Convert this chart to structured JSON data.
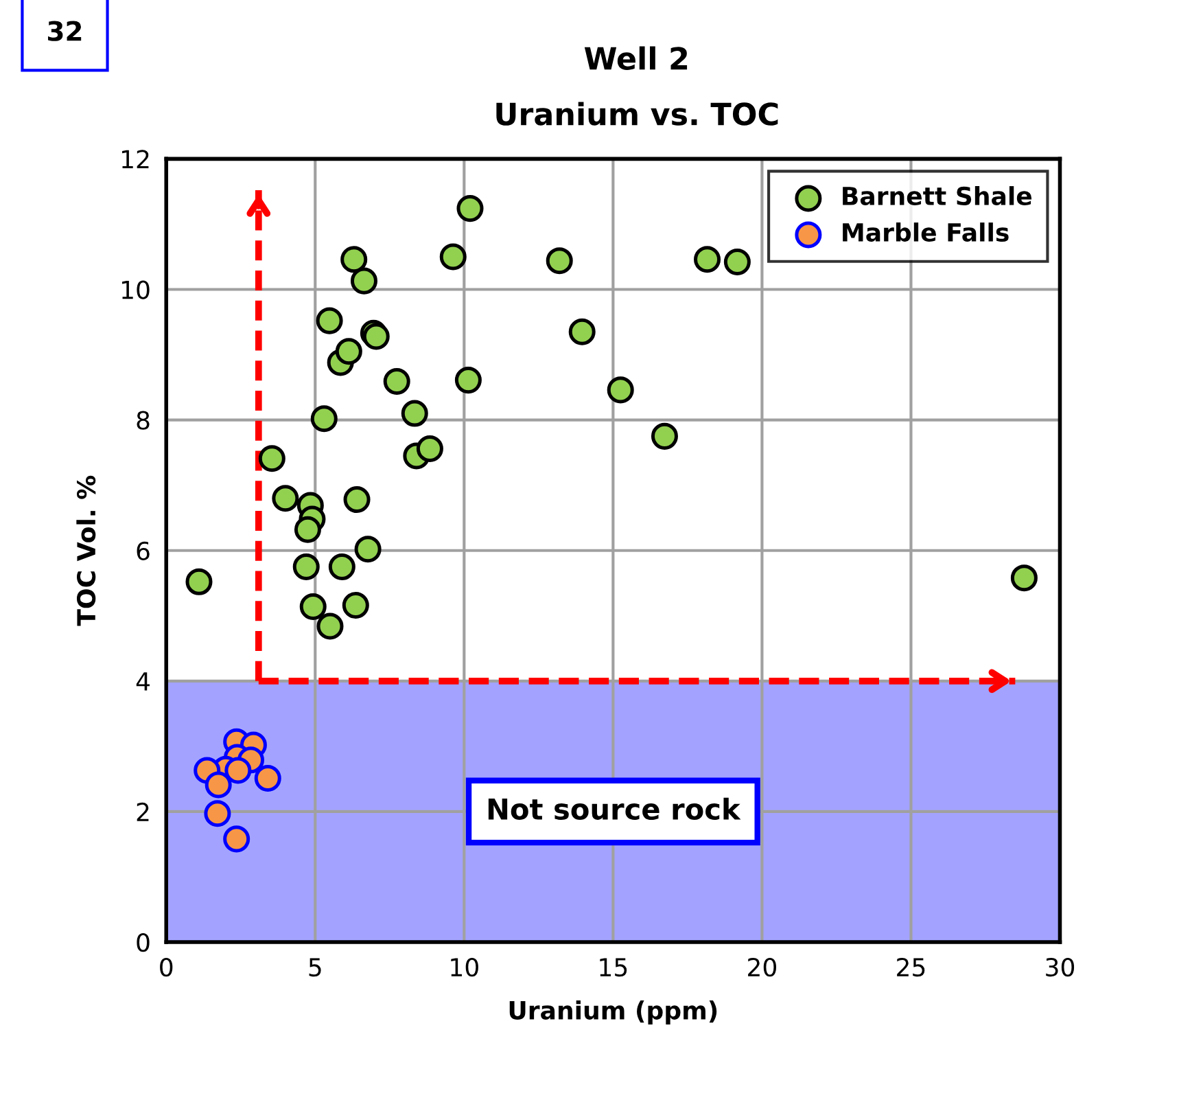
{
  "chart_data": {
    "type": "scatter",
    "title": "Well 2",
    "subtitle": "Uranium vs. TOC",
    "xlabel": "Uranium (ppm)",
    "ylabel": "TOC Vol. %",
    "annotations": [
      "32"
    ],
    "xlim": [
      0,
      30
    ],
    "xticks": [
      0,
      5,
      10,
      15,
      20,
      25,
      30
    ],
    "ylim": [
      0,
      12
    ],
    "yticks": [
      0,
      2,
      4,
      6,
      8,
      10,
      12
    ],
    "grid": true,
    "legend": "top right",
    "marker": "circle",
    "ref_lines": [
      {
        "axis": "x",
        "value": 3.1,
        "color": "#ff0000",
        "line_style": "dashed"
      },
      {
        "axis": "y",
        "value": 4,
        "color": "#ff0000",
        "line_style": "dashed"
      }
    ],
    "bands": [
      {
        "axis": "y",
        "from": 0,
        "to": 4,
        "label": "Not source rock",
        "color": "#9999ff"
      }
    ],
    "series": [
      {
        "name": "Barnett Shale",
        "color": "#92d050",
        "x": [
          1.1,
          3.55,
          4.0,
          4.84,
          4.9,
          4.75,
          4.7,
          4.93,
          5.3,
          5.5,
          5.48,
          5.9,
          5.85,
          6.13,
          6.3,
          6.36,
          6.4,
          6.64,
          6.77,
          6.96,
          7.05,
          7.74,
          8.34,
          8.4,
          8.85,
          9.63,
          10.14,
          10.2,
          13.2,
          13.96,
          15.25,
          16.73,
          18.16,
          19.17,
          28.8
        ],
        "values": [
          5.52,
          7.41,
          6.8,
          6.69,
          6.48,
          6.32,
          5.75,
          5.14,
          8.02,
          4.84,
          9.52,
          5.75,
          8.88,
          9.05,
          10.46,
          5.16,
          6.78,
          10.13,
          6.02,
          9.33,
          9.28,
          8.59,
          8.1,
          7.45,
          7.56,
          10.5,
          8.61,
          11.24,
          10.44,
          9.35,
          8.46,
          7.75,
          10.46,
          10.42,
          5.58
        ]
      },
      {
        "name": "Marble Falls",
        "color": "#f79646",
        "x": [
          2.36,
          2.93,
          2.38,
          2.84,
          2.0,
          1.37,
          2.41,
          1.75,
          3.41,
          1.72,
          2.36
        ],
        "values": [
          3.07,
          3.02,
          2.83,
          2.79,
          2.65,
          2.63,
          2.63,
          2.41,
          2.51,
          1.97,
          1.58
        ]
      }
    ]
  }
}
